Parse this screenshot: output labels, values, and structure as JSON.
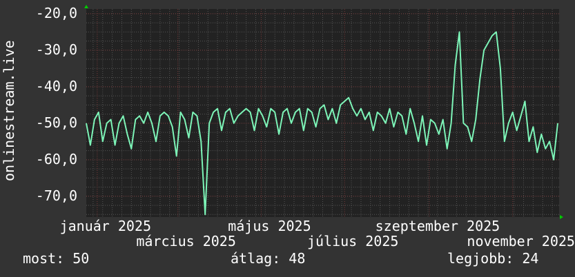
{
  "chart_data": {
    "type": "line",
    "ylabel": "onlinestream.live",
    "ylim": [
      -75.7,
      -18.7
    ],
    "y_ticks": [
      "-20,0",
      "-30,0",
      "-40,0",
      "-50,0",
      "-60,0",
      "-70,0"
    ],
    "y_tick_values": [
      -20,
      -30,
      -40,
      -50,
      -60,
      -70
    ],
    "x_ticks": [
      "január 2025",
      "március 2025",
      "május 2025",
      "július 2025",
      "szeptember 2025",
      "november 2025"
    ],
    "x_tick_dates": [
      "2025-01-01",
      "2025-03-01",
      "2025-05-01",
      "2025-07-01",
      "2025-09-01",
      "2025-11-01"
    ],
    "x_range": [
      "2024-12-24",
      "2025-12-05"
    ],
    "x_step_days": 3,
    "grid": true,
    "colors": {
      "line": "#7df5b8",
      "plot_bg": "#222222",
      "frame_bg": "#333333",
      "major_grid": "#7a3a3a",
      "minor_grid": "#555555",
      "arrow": "#00cc00"
    },
    "series": [
      {
        "values": [
          -50,
          -56,
          -49,
          -47,
          -55,
          -50,
          -49,
          -56,
          -50,
          -48,
          -53,
          -57,
          -49,
          -48,
          -50,
          -47,
          -50,
          -55,
          -48,
          -47,
          -48,
          -51,
          -59,
          -47,
          -49,
          -54,
          -47,
          -48,
          -55,
          -75,
          -50,
          -47,
          -46,
          -52,
          -47,
          -46,
          -50,
          -48,
          -47,
          -46,
          -47,
          -52,
          -46,
          -48,
          -51,
          -46,
          -47,
          -53,
          -47,
          -46,
          -50,
          -47,
          -46,
          -52,
          -46,
          -47,
          -51,
          -46,
          -45,
          -49,
          -46,
          -50,
          -45,
          -44,
          -43,
          -46,
          -48,
          -46,
          -49,
          -47,
          -52,
          -47,
          -48,
          -50,
          -46,
          -51,
          -47,
          -48,
          -53,
          -46,
          -50,
          -55,
          -48,
          -56,
          -49,
          -50,
          -53,
          -49,
          -57,
          -50,
          -34,
          -25,
          -50,
          -51,
          -55,
          -49,
          -38,
          -30,
          -28,
          -26,
          -25,
          -35,
          -55,
          -50,
          -47,
          -52,
          -48,
          -44,
          -55,
          -51,
          -58,
          -53,
          -57,
          -55,
          -60,
          -50
        ]
      }
    ]
  },
  "stats": {
    "current": "most: 50",
    "average": "átlag: 48",
    "best": "legjobb: 24"
  }
}
